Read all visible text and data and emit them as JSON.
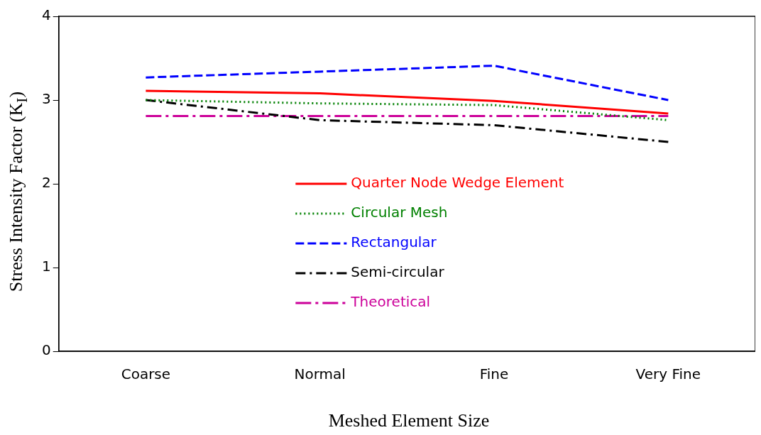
{
  "chart_data": {
    "type": "line",
    "xlabel": "Meshed Element Size",
    "ylabel": "Stress Intensity Factor (K$_{I}$)",
    "categories": [
      "Coarse",
      "Normal",
      "Fine",
      "Very Fine"
    ],
    "ylim": [
      0,
      4
    ],
    "yticks": [
      0,
      1,
      2,
      3,
      4
    ],
    "grid": false,
    "legend": "center",
    "marker": "none",
    "series": [
      {
        "name": "Quarter Node Wedge Element",
        "color": "#ff0000",
        "line_style": "solid",
        "values": [
          3.11,
          3.08,
          2.99,
          2.84
        ]
      },
      {
        "name": "Circular Mesh",
        "color": "#008000",
        "line_style": "dotted",
        "values": [
          3.0,
          2.96,
          2.94,
          2.76
        ]
      },
      {
        "name": "Rectangular",
        "color": "#0000ff",
        "line_style": "dashed",
        "values": [
          3.27,
          3.34,
          3.41,
          3.0
        ]
      },
      {
        "name": "Semi-circular",
        "color": "#000000",
        "line_style": "dashdot",
        "values": [
          3.0,
          2.76,
          2.7,
          2.5
        ]
      },
      {
        "name": "Theoretical",
        "color": "#cc0099",
        "line_style": "longdashdot",
        "values": [
          2.81,
          2.81,
          2.81,
          2.81
        ]
      }
    ]
  }
}
